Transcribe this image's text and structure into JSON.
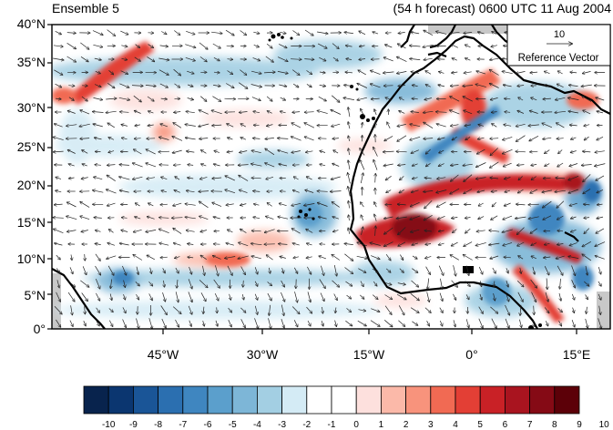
{
  "title_left": "Ensemble 5",
  "title_right": "(54 h forecast) 0600 UTC 11 Aug 2004",
  "y_axis_labels": [
    "40°N",
    "35°N",
    "30°N",
    "25°N",
    "20°N",
    "15°N",
    "10°N",
    "5°N",
    "0°"
  ],
  "x_axis_labels": [
    "45°W",
    "30°W",
    "15°W",
    "0°",
    "15°E"
  ],
  "reference_vector": {
    "value": "10",
    "label": "Reference Vector"
  },
  "colorbar": {
    "labels": [
      "-10",
      "-9",
      "-8",
      "-7",
      "-6",
      "-5",
      "-4",
      "-3",
      "-2",
      "-1",
      "0",
      "1",
      "2",
      "3",
      "4",
      "5",
      "6",
      "7",
      "8",
      "9",
      "10"
    ],
    "colors": [
      "#08234d",
      "#0b3670",
      "#1a5597",
      "#2b6fb0",
      "#3f86c0",
      "#5b9fcc",
      "#7db6d7",
      "#a3cfe3",
      "#d4ebf5",
      "#ffffff",
      "#ffffff",
      "#fde0dd",
      "#fbb9a9",
      "#f8937c",
      "#f16a53",
      "#e33f35",
      "#c92126",
      "#a9141f",
      "#850a15",
      "#5c0008"
    ]
  },
  "chart_data": {
    "type": "heatmap",
    "title": "Ensemble 5",
    "subtitle": "(54 h forecast) 0600 UTC 11 Aug 2004",
    "x_range_deg": [
      -60,
      20
    ],
    "y_range_deg": [
      0,
      40
    ],
    "grid": false,
    "legend": "bottom",
    "colorbar_range": [
      -10,
      10
    ],
    "overlay": "wind vectors"
  }
}
